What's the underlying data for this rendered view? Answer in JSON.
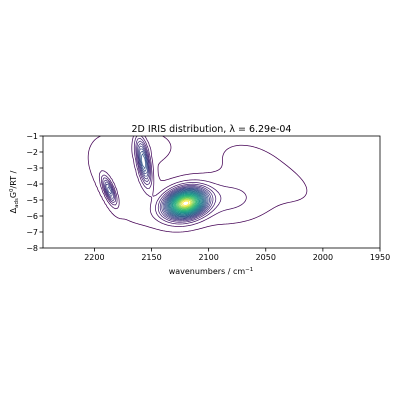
{
  "chart_data": {
    "type": "contour",
    "title": "2D IRIS distribution, λ = 6.29e-04",
    "xlabel_main": "wavenumbers / cm",
    "xlabel_sup": "−1",
    "ylabel_parts": {
      "delta": "Δ",
      "sub": "ads",
      "G": "G",
      "sup": "0",
      "rest": "/RT /"
    },
    "x_axis": {
      "min": 2245,
      "max": 1950,
      "inverted": true,
      "ticks": [
        2200,
        2150,
        2100,
        2050,
        2000,
        1950
      ]
    },
    "y_axis": {
      "min": -8,
      "max": -1,
      "ticks": [
        -1,
        -2,
        -3,
        -4,
        -5,
        -6,
        -7,
        -8
      ]
    },
    "colormap": "viridis",
    "grid": false,
    "peaks": [
      {
        "center": [
          2120,
          -5.2
        ],
        "amplitude": 1.0,
        "sx": 11,
        "sy": 0.55,
        "rho": -0.2
      },
      {
        "center": [
          2157,
          -2.6
        ],
        "amplitude": 0.34,
        "sx": 4,
        "sy": 0.9,
        "rho": 0.55
      },
      {
        "center": [
          2187,
          -4.4
        ],
        "amplitude": 0.26,
        "sx": 4,
        "sy": 0.55,
        "rho": 0.7
      },
      {
        "center": [
          2085,
          -4.9
        ],
        "amplitude": 0.05,
        "sx": 20,
        "sy": 0.75,
        "rho": 0.0
      },
      {
        "center": [
          2175,
          -3.3
        ],
        "amplitude": 0.025,
        "sx": 18,
        "sy": 1.4,
        "rho": 0.4
      },
      {
        "center": [
          2155,
          -1.7
        ],
        "amplitude": 0.02,
        "sx": 14,
        "sy": 0.6,
        "rho": 0.0
      },
      {
        "center": [
          2045,
          -3.7
        ],
        "amplitude": 0.012,
        "sx": 26,
        "sy": 1.1,
        "rho": 0.55
      },
      {
        "center": [
          2065,
          -2.4
        ],
        "amplitude": 0.007,
        "sx": 18,
        "sy": 0.8,
        "rho": 0.3
      },
      {
        "center": [
          2135,
          -5.9
        ],
        "amplitude": 0.015,
        "sx": 24,
        "sy": 0.5,
        "rho": 0.0
      }
    ],
    "levels": [
      0.006,
      0.035,
      0.07,
      0.105,
      0.14,
      0.175,
      0.21,
      0.245,
      0.28,
      0.315,
      0.35,
      0.385,
      0.42,
      0.455,
      0.49,
      0.525,
      0.56,
      0.595,
      0.63,
      0.665,
      0.7,
      0.735,
      0.77,
      0.805,
      0.84,
      0.875,
      0.91,
      0.945,
      0.98
    ]
  }
}
